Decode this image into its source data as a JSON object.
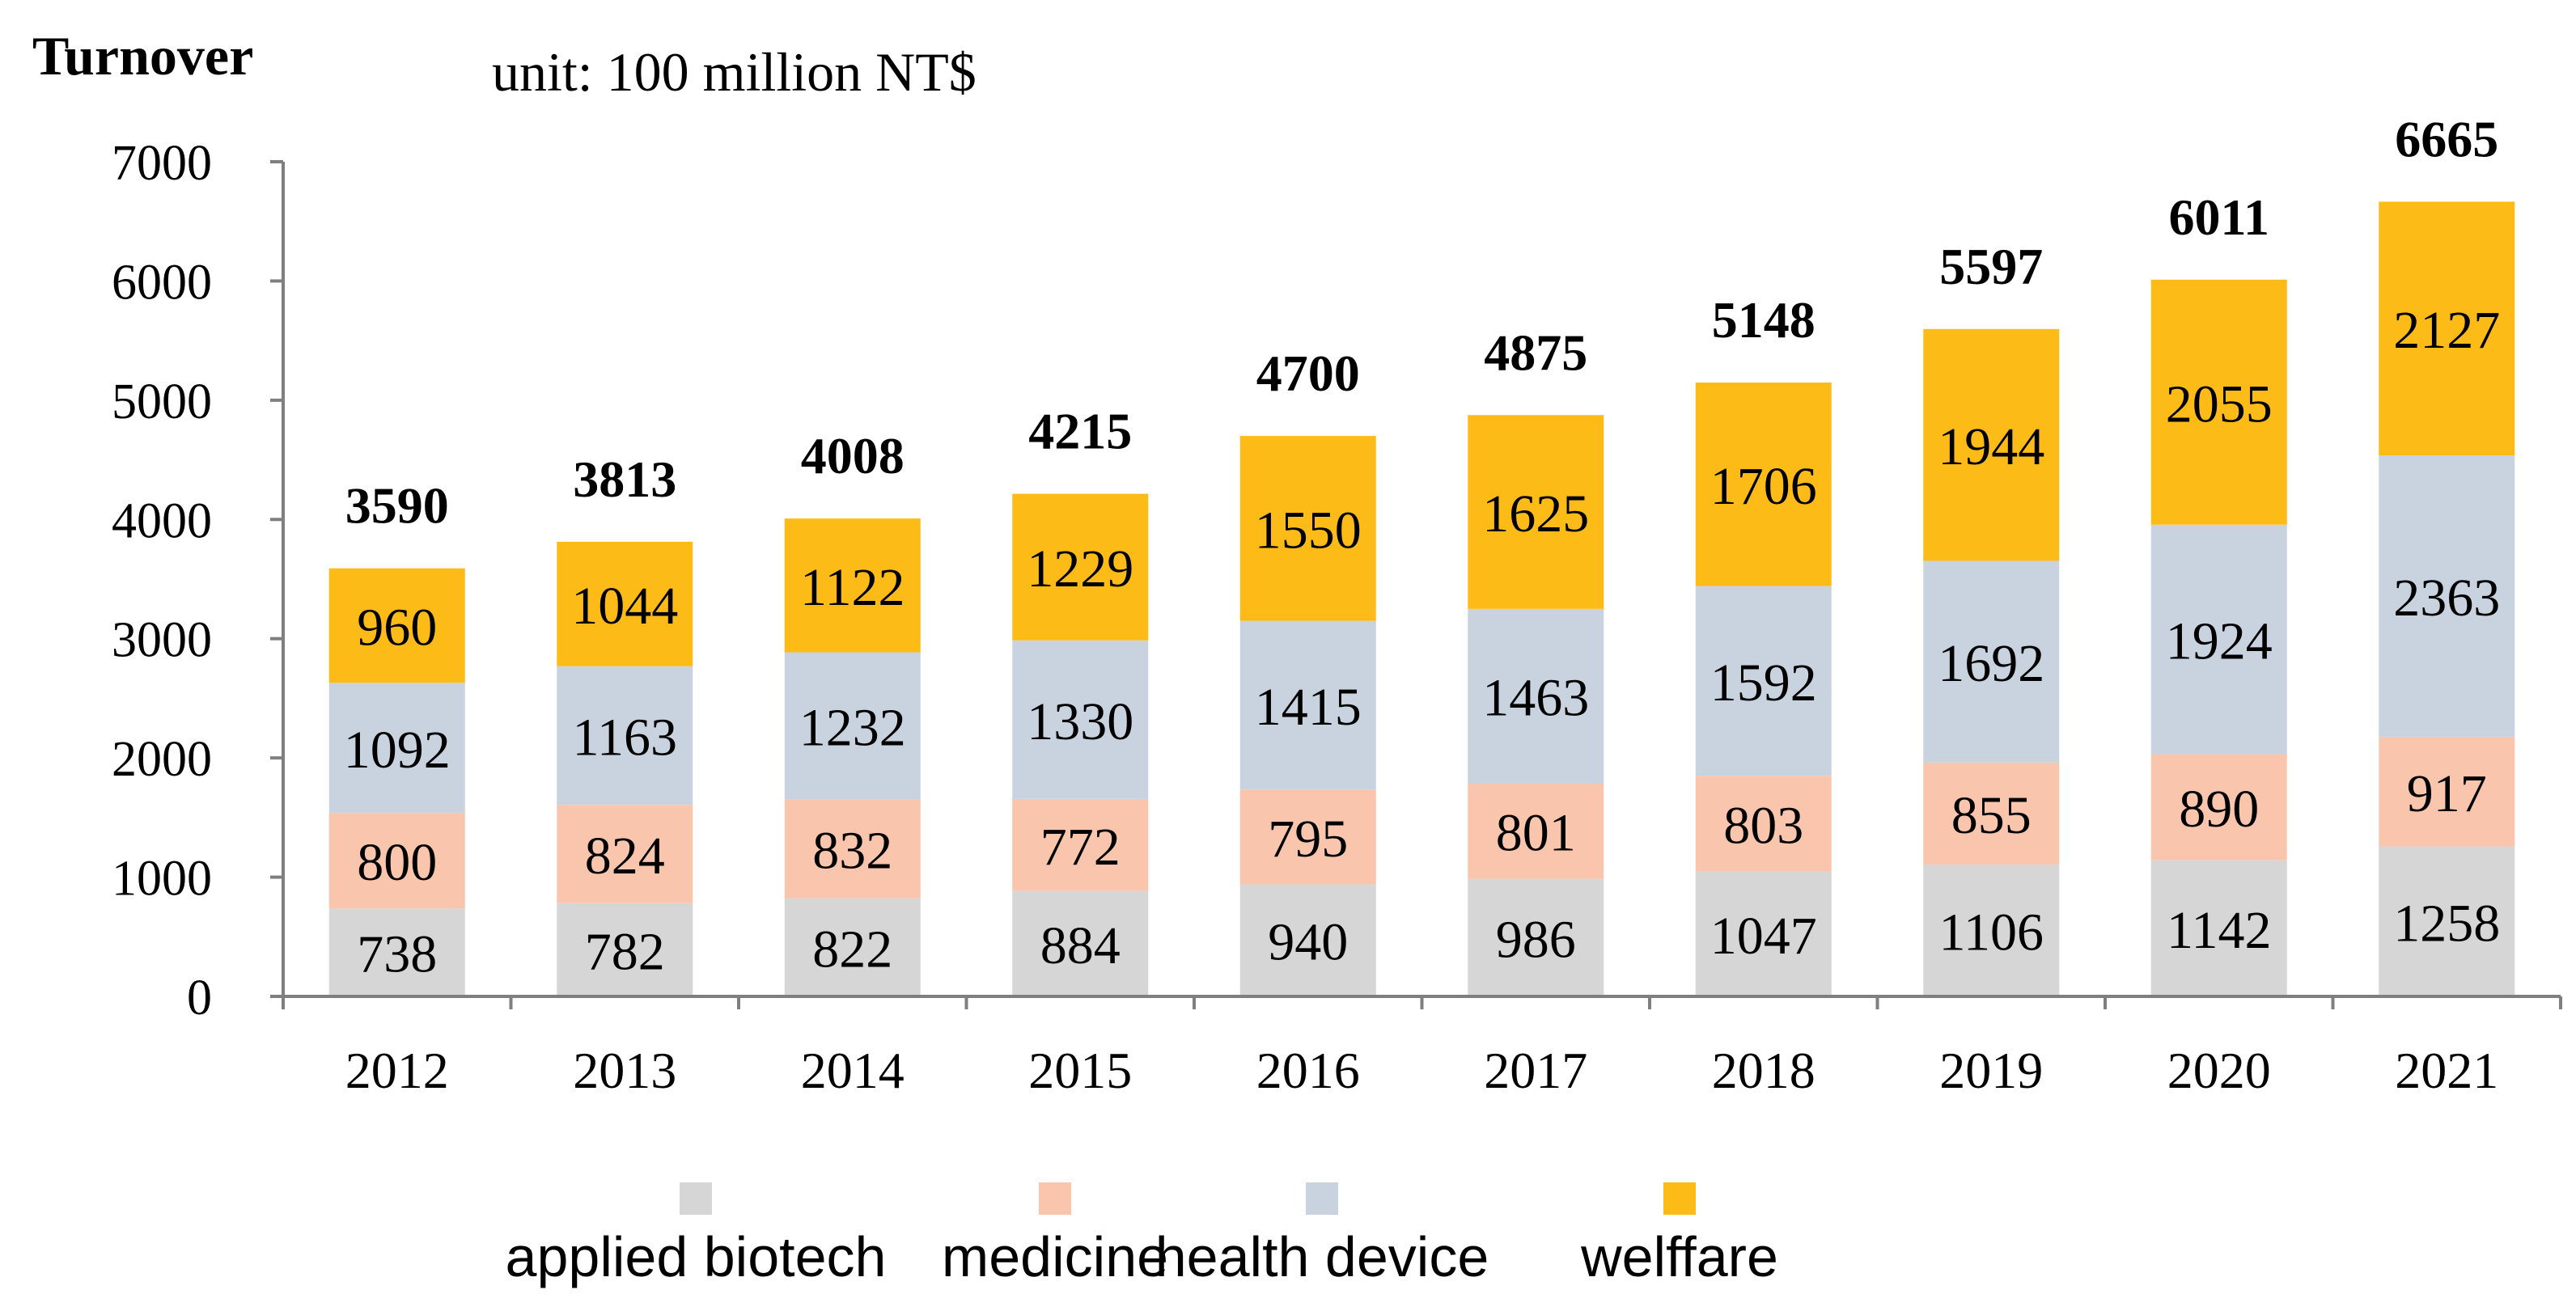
{
  "chart_data": {
    "type": "bar",
    "stacked": true,
    "title": "Turnover",
    "subtitle": "unit: 100 million NT$",
    "ylabel": "Turnover",
    "xlabel": "",
    "ylim": [
      0,
      7000
    ],
    "yticks": [
      0,
      1000,
      2000,
      3000,
      4000,
      5000,
      6000,
      7000
    ],
    "categories": [
      "2012",
      "2013",
      "2014",
      "2015",
      "2016",
      "2017",
      "2018",
      "2019",
      "2020",
      "2021"
    ],
    "series": [
      {
        "name": "applied biotech",
        "color": "#d6d6d6",
        "values": [
          738,
          782,
          822,
          884,
          940,
          986,
          1047,
          1106,
          1142,
          1258
        ]
      },
      {
        "name": "medicine",
        "color": "#f9c6ad",
        "values": [
          800,
          824,
          832,
          772,
          795,
          801,
          803,
          855,
          890,
          917
        ]
      },
      {
        "name": "health device",
        "color": "#c9d3e0",
        "values": [
          1092,
          1163,
          1232,
          1330,
          1415,
          1463,
          1592,
          1692,
          1924,
          2363
        ]
      },
      {
        "name": "welffare",
        "color": "#fdbb17",
        "values": [
          960,
          1044,
          1122,
          1229,
          1550,
          1625,
          1706,
          1944,
          2055,
          2127
        ]
      }
    ],
    "totals": [
      3590,
      3813,
      4008,
      4215,
      4700,
      4875,
      5148,
      5597,
      6011,
      6665
    ],
    "grid": false,
    "legend_position": "bottom"
  }
}
